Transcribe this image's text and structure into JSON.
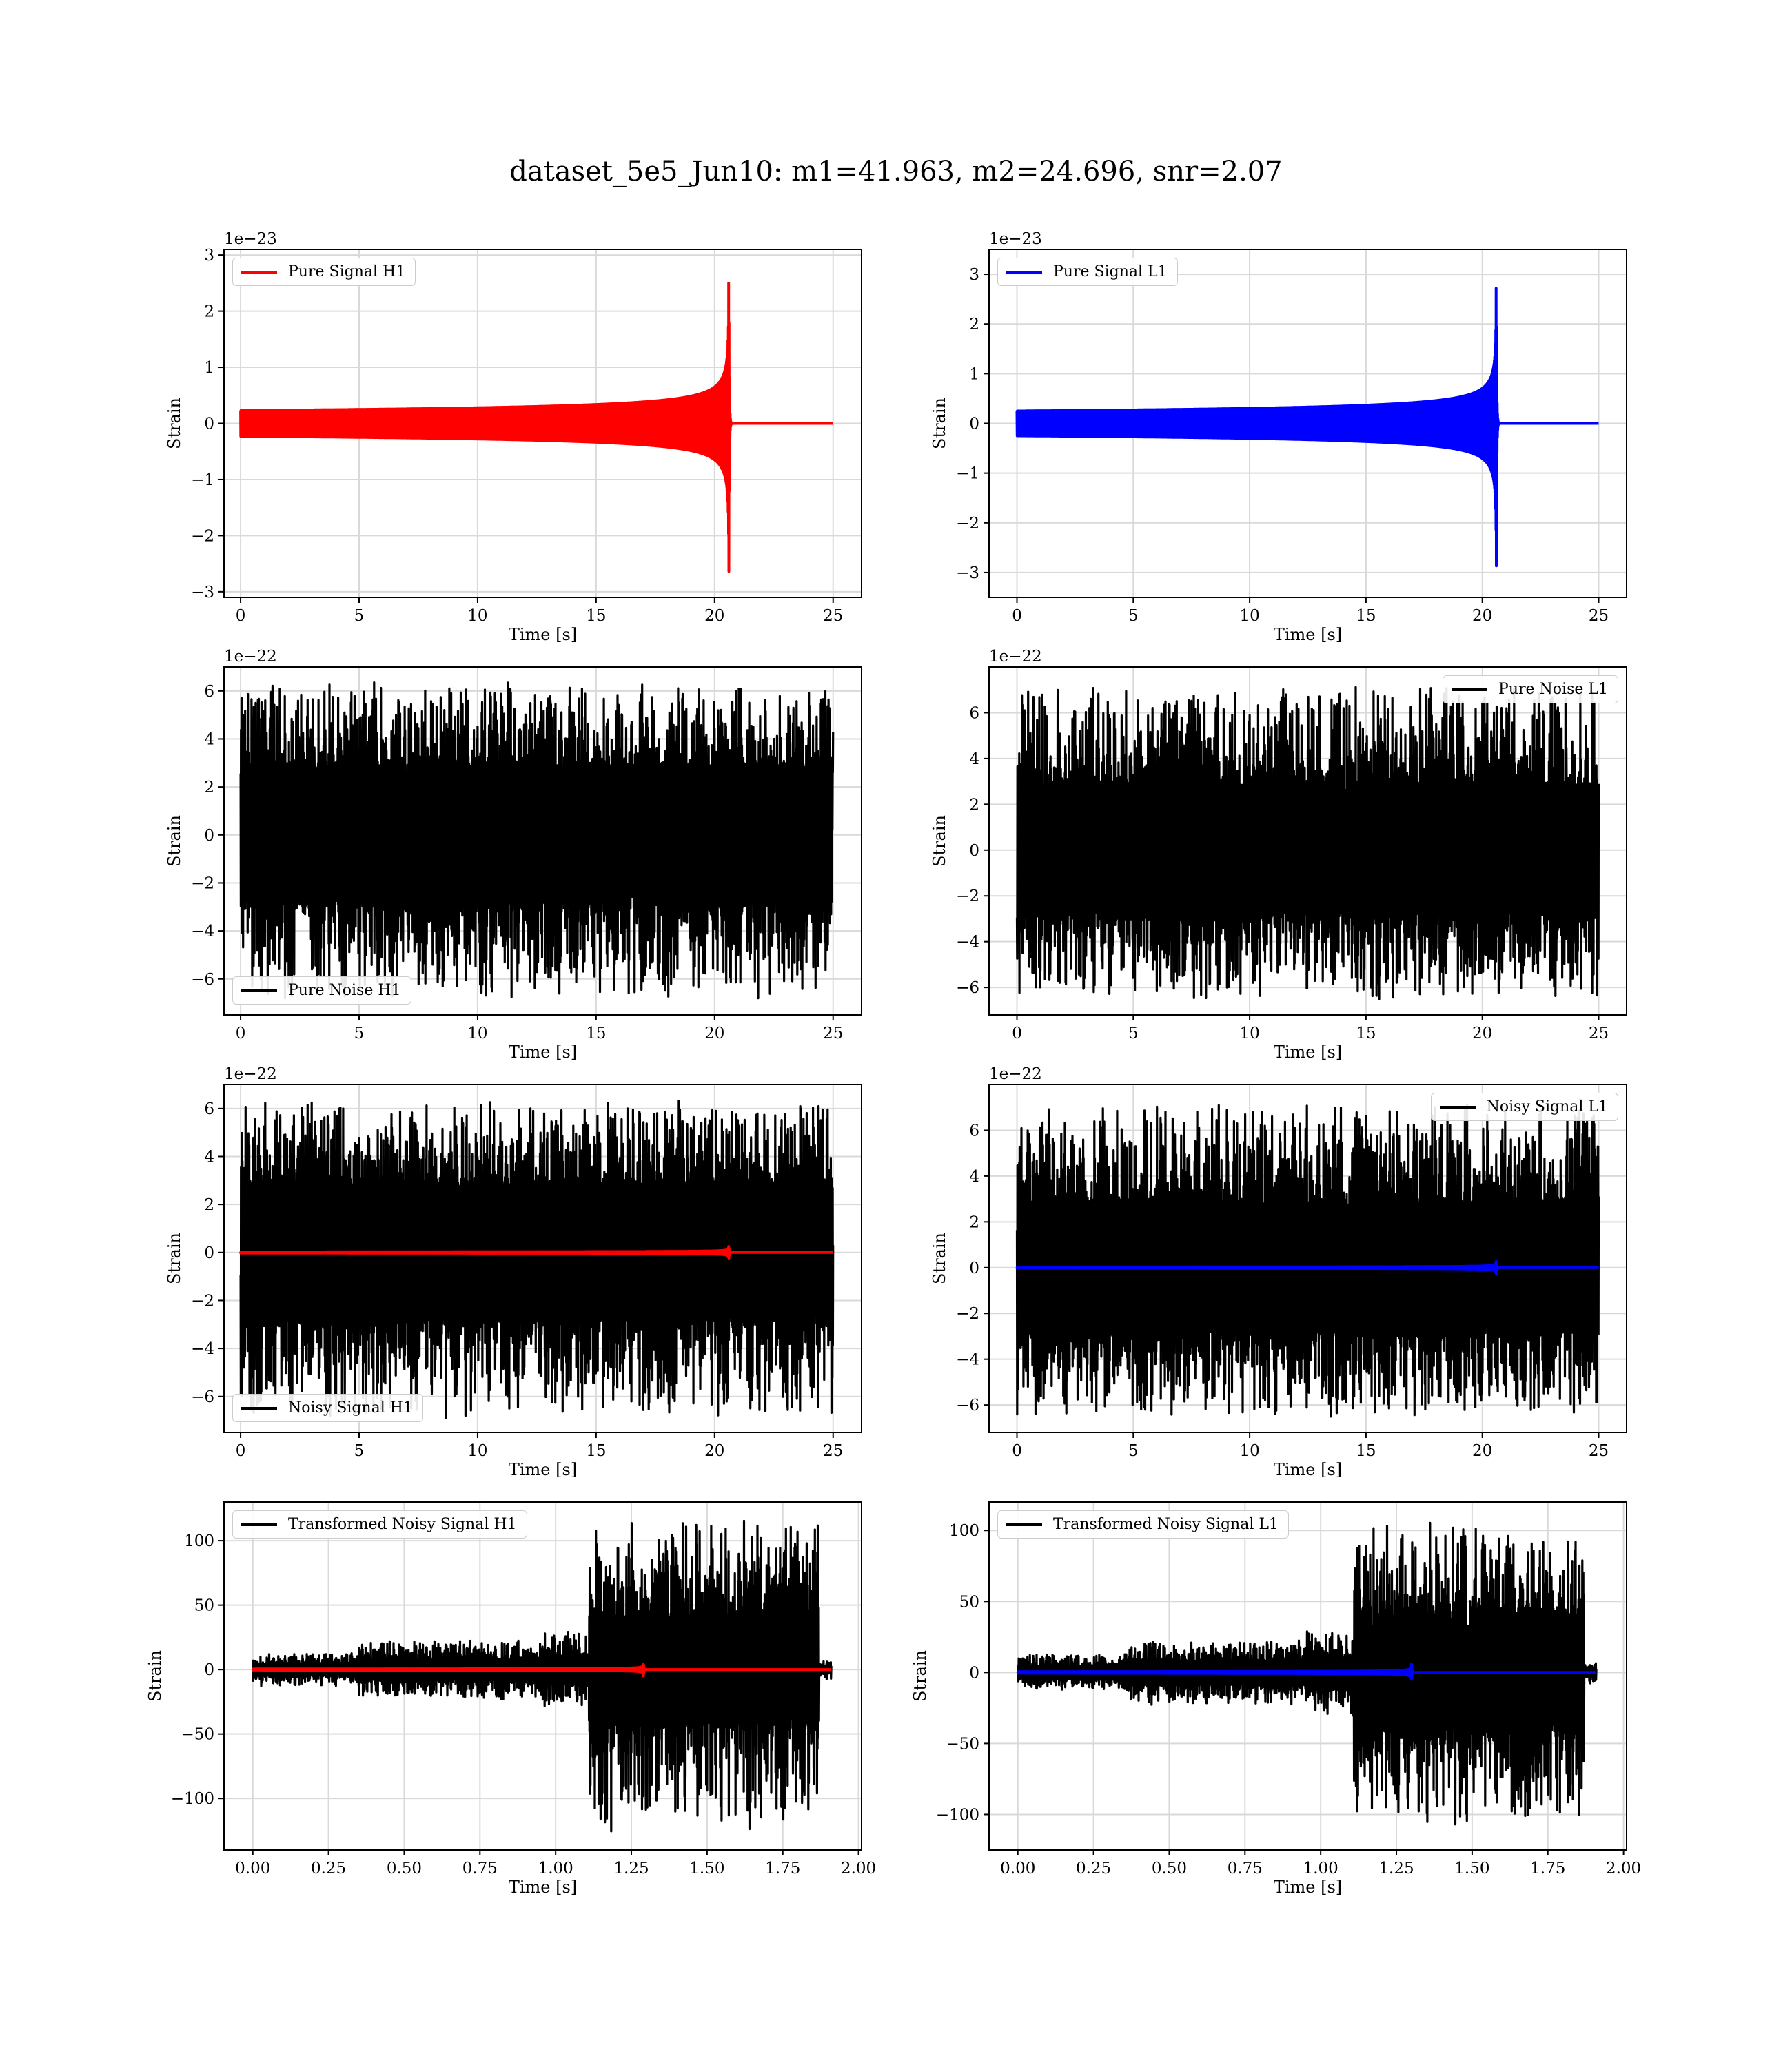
{
  "figure": {
    "suptitle": "dataset_5e5_Jun10: m1=41.963, m2=24.696, snr=2.07",
    "colors": {
      "red": "#ff0000",
      "blue": "#0000ff",
      "black": "#000000",
      "grid": "#d9d9d9"
    }
  },
  "chart_data": [
    {
      "type": "line",
      "panel": "pure-signal-h1",
      "legend": "Pure Signal H1",
      "legend_loc": "upper-left",
      "xlabel": "Time [s]",
      "ylabel": "Strain",
      "offset_text": "1e−23",
      "xlim": [
        -0.7,
        26.2
      ],
      "ylim": [
        -3.1,
        3.1
      ],
      "xticks": [
        0,
        5,
        10,
        15,
        20,
        25
      ],
      "xtick_labels": [
        "0",
        "5",
        "10",
        "15",
        "20",
        "25"
      ],
      "yticks": [
        -3,
        -2,
        -1,
        0,
        1,
        2,
        3
      ],
      "ytick_labels": [
        "−3",
        "−2",
        "−1",
        "0",
        "1",
        "2",
        "3"
      ],
      "series": [
        {
          "kind": "chirp",
          "color": "#ff0000",
          "x_start": 0,
          "x_end": 25,
          "merger_time": 20.6,
          "peak_amplitude": 2.85
        }
      ]
    },
    {
      "type": "line",
      "panel": "pure-signal-l1",
      "legend": "Pure Signal L1",
      "legend_loc": "upper-left",
      "xlabel": "Time [s]",
      "ylabel": "Strain",
      "offset_text": "1e−23",
      "xlim": [
        -1.2,
        26.2
      ],
      "ylim": [
        -3.5,
        3.5
      ],
      "xticks": [
        0,
        5,
        10,
        15,
        20,
        25
      ],
      "xtick_labels": [
        "0",
        "5",
        "10",
        "15",
        "20",
        "25"
      ],
      "yticks": [
        -3,
        -2,
        -1,
        0,
        1,
        2,
        3
      ],
      "ytick_labels": [
        "−3",
        "−2",
        "−1",
        "0",
        "1",
        "2",
        "3"
      ],
      "series": [
        {
          "kind": "chirp",
          "color": "#0000ff",
          "x_start": 0,
          "x_end": 25,
          "merger_time": 20.6,
          "peak_amplitude": 3.1
        }
      ]
    },
    {
      "type": "line",
      "panel": "pure-noise-h1",
      "legend": "Pure Noise H1",
      "legend_loc": "lower-left",
      "xlabel": "Time [s]",
      "ylabel": "Strain",
      "offset_text": "1e−22",
      "xlim": [
        -0.7,
        26.2
      ],
      "ylim": [
        -7.5,
        7.0
      ],
      "xticks": [
        0,
        5,
        10,
        15,
        20,
        25
      ],
      "xtick_labels": [
        "0",
        "5",
        "10",
        "15",
        "20",
        "25"
      ],
      "yticks": [
        -6,
        -4,
        -2,
        0,
        2,
        4,
        6
      ],
      "ytick_labels": [
        "−6",
        "−4",
        "−2",
        "0",
        "2",
        "4",
        "6"
      ],
      "series": [
        {
          "kind": "noise",
          "color": "#000000",
          "x_start": 0,
          "x_end": 25,
          "band": 3.0,
          "min": -7.0,
          "max": 6.4
        }
      ]
    },
    {
      "type": "line",
      "panel": "pure-noise-l1",
      "legend": "Pure Noise L1",
      "legend_loc": "upper-right",
      "xlabel": "Time [s]",
      "ylabel": "Strain",
      "offset_text": "1e−22",
      "xlim": [
        -1.2,
        26.2
      ],
      "ylim": [
        -7.2,
        8.0
      ],
      "xticks": [
        0,
        5,
        10,
        15,
        20,
        25
      ],
      "xtick_labels": [
        "0",
        "5",
        "10",
        "15",
        "20",
        "25"
      ],
      "yticks": [
        -6,
        -4,
        -2,
        0,
        2,
        4,
        6
      ],
      "ytick_labels": [
        "−6",
        "−4",
        "−2",
        "0",
        "2",
        "4",
        "6"
      ],
      "series": [
        {
          "kind": "noise",
          "color": "#000000",
          "x_start": 0,
          "x_end": 25,
          "band": 3.0,
          "min": -6.6,
          "max": 7.2
        }
      ]
    },
    {
      "type": "line",
      "panel": "noisy-signal-h1",
      "legend": "Noisy Signal H1",
      "legend_loc": "lower-left",
      "xlabel": "Time [s]",
      "ylabel": "Strain",
      "offset_text": "1e−22",
      "xlim": [
        -0.7,
        26.2
      ],
      "ylim": [
        -7.5,
        7.0
      ],
      "xticks": [
        0,
        5,
        10,
        15,
        20,
        25
      ],
      "xtick_labels": [
        "0",
        "5",
        "10",
        "15",
        "20",
        "25"
      ],
      "yticks": [
        -6,
        -4,
        -2,
        0,
        2,
        4,
        6
      ],
      "ytick_labels": [
        "−6",
        "−4",
        "−2",
        "0",
        "2",
        "4",
        "6"
      ],
      "series": [
        {
          "kind": "noise",
          "color": "#000000",
          "x_start": 0,
          "x_end": 25,
          "band": 3.0,
          "min": -7.0,
          "max": 6.4
        },
        {
          "kind": "chirp",
          "color": "#ff0000",
          "x_start": 0,
          "x_end": 25,
          "merger_time": 20.6,
          "peak_amplitude": 0.285
        }
      ]
    },
    {
      "type": "line",
      "panel": "noisy-signal-l1",
      "legend": "Noisy Signal L1",
      "legend_loc": "upper-right",
      "xlabel": "Time [s]",
      "ylabel": "Strain",
      "offset_text": "1e−22",
      "xlim": [
        -1.2,
        26.2
      ],
      "ylim": [
        -7.2,
        8.0
      ],
      "xticks": [
        0,
        5,
        10,
        15,
        20,
        25
      ],
      "xtick_labels": [
        "0",
        "5",
        "10",
        "15",
        "20",
        "25"
      ],
      "yticks": [
        -6,
        -4,
        -2,
        0,
        2,
        4,
        6
      ],
      "ytick_labels": [
        "−6",
        "−4",
        "−2",
        "0",
        "2",
        "4",
        "6"
      ],
      "series": [
        {
          "kind": "noise",
          "color": "#000000",
          "x_start": 0,
          "x_end": 25,
          "band": 3.0,
          "min": -6.6,
          "max": 7.2
        },
        {
          "kind": "chirp",
          "color": "#0000ff",
          "x_start": 0,
          "x_end": 25,
          "merger_time": 20.6,
          "peak_amplitude": 0.31
        }
      ]
    },
    {
      "type": "line",
      "panel": "transformed-noisy-signal-h1",
      "legend": "Transformed Noisy Signal H1",
      "legend_loc": "upper-left",
      "xlabel": "Time [s]",
      "ylabel": "Strain",
      "offset_text": "",
      "xlim": [
        -0.095,
        2.01
      ],
      "ylim": [
        -140,
        130
      ],
      "xticks": [
        0,
        0.25,
        0.5,
        0.75,
        1.0,
        1.25,
        1.5,
        1.75,
        2.0
      ],
      "xtick_labels": [
        "0.00",
        "0.25",
        "0.50",
        "0.75",
        "1.00",
        "1.25",
        "1.50",
        "1.75",
        "2.00"
      ],
      "yticks": [
        -100,
        -50,
        0,
        50,
        100
      ],
      "ytick_labels": [
        "−100",
        "−50",
        "0",
        "50",
        "100"
      ],
      "series": [
        {
          "kind": "whitened",
          "color": "#000000",
          "x_start": 0,
          "x_end": 1.91,
          "segments": [
            [
              0.0,
              0.35,
              5
            ],
            [
              0.35,
              0.95,
              9
            ],
            [
              0.95,
              1.11,
              12
            ],
            [
              1.11,
              1.87,
              45
            ],
            [
              1.87,
              1.91,
              3
            ]
          ],
          "min": -127,
          "max": 118
        },
        {
          "kind": "chirp",
          "color": "#ff0000",
          "x_start": 0,
          "x_end": 1.91,
          "merger_time": 1.29,
          "peak_amplitude": 5
        }
      ]
    },
    {
      "type": "line",
      "panel": "transformed-noisy-signal-l1",
      "legend": "Transformed Noisy Signal L1",
      "legend_loc": "upper-left",
      "xlabel": "Time [s]",
      "ylabel": "Strain",
      "offset_text": "",
      "xlim": [
        -0.095,
        2.01
      ],
      "ylim": [
        -125,
        120
      ],
      "xticks": [
        0,
        0.25,
        0.5,
        0.75,
        1.0,
        1.25,
        1.5,
        1.75,
        2.0
      ],
      "xtick_labels": [
        "0.00",
        "0.25",
        "0.50",
        "0.75",
        "1.00",
        "1.25",
        "1.50",
        "1.75",
        "2.00"
      ],
      "yticks": [
        -100,
        -50,
        0,
        50,
        100
      ],
      "ytick_labels": [
        "−100",
        "−50",
        "0",
        "50",
        "100"
      ],
      "series": [
        {
          "kind": "whitened",
          "color": "#000000",
          "x_start": 0,
          "x_end": 1.91,
          "segments": [
            [
              0.0,
              0.35,
              5
            ],
            [
              0.35,
              0.95,
              9
            ],
            [
              0.95,
              1.11,
              12
            ],
            [
              1.11,
              1.87,
              45
            ],
            [
              1.87,
              1.91,
              3
            ]
          ],
          "min": -110,
          "max": 110
        },
        {
          "kind": "chirp",
          "color": "#0000ff",
          "x_start": 0,
          "x_end": 1.91,
          "merger_time": 1.3,
          "peak_amplitude": 6
        }
      ]
    }
  ]
}
